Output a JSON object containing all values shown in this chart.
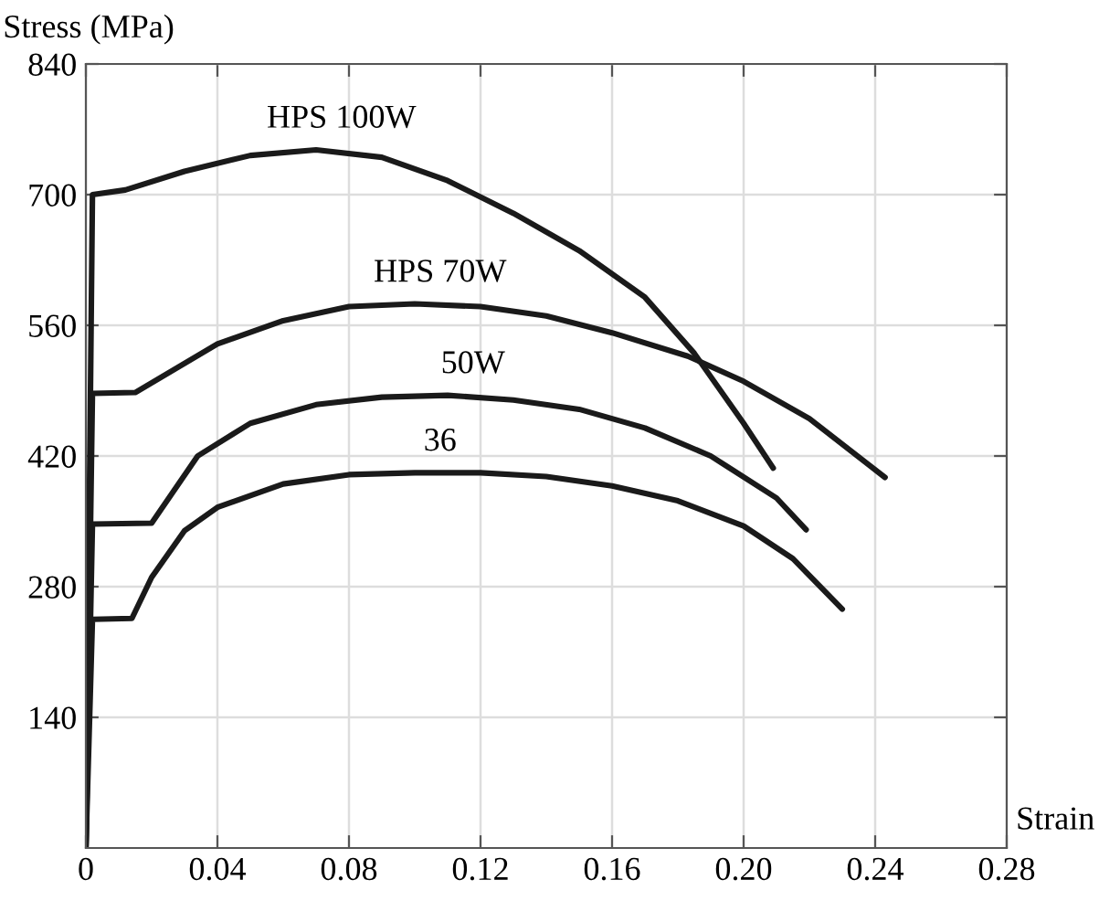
{
  "chart_data": {
    "type": "line",
    "xlabel": "Strain",
    "ylabel": "Stress (MPa)",
    "xlim": [
      0,
      0.28
    ],
    "ylim": [
      0,
      840
    ],
    "xticks": [
      0,
      0.04,
      0.08,
      0.12,
      0.16,
      {
        "value": 0.2,
        "label": "0.20"
      },
      0.24,
      0.28
    ],
    "yticks": [
      140,
      280,
      420,
      560,
      700,
      840
    ],
    "grid": true,
    "marker": "none",
    "line_style": "solid",
    "series": [
      {
        "name": "HPS 100W",
        "color": "#1a1a1a",
        "x": [
          0,
          0.002,
          0.012,
          0.03,
          0.05,
          0.07,
          0.09,
          0.11,
          0.13,
          0.15,
          0.17,
          0.185,
          0.2,
          0.209
        ],
        "values": [
          0,
          700,
          705,
          725,
          742,
          748,
          740,
          715,
          680,
          640,
          590,
          530,
          455,
          407
        ]
      },
      {
        "name": "HPS 70W",
        "color": "#1a1a1a",
        "x": [
          0,
          0.002,
          0.015,
          0.04,
          0.06,
          0.08,
          0.1,
          0.12,
          0.14,
          0.16,
          0.183,
          0.2,
          0.22,
          0.243
        ],
        "values": [
          0,
          487,
          488,
          540,
          565,
          580,
          583,
          580,
          570,
          552,
          527,
          500,
          460,
          397
        ]
      },
      {
        "name": "50W",
        "color": "#1a1a1a",
        "x": [
          0,
          0.002,
          0.02,
          0.034,
          0.05,
          0.07,
          0.09,
          0.11,
          0.13,
          0.15,
          0.17,
          0.19,
          0.21,
          0.219
        ],
        "values": [
          0,
          347,
          348,
          420,
          455,
          475,
          483,
          485,
          480,
          470,
          450,
          420,
          375,
          341
        ]
      },
      {
        "name": "36",
        "color": "#1a1a1a",
        "x": [
          0,
          0.002,
          0.014,
          0.02,
          0.03,
          0.04,
          0.06,
          0.08,
          0.1,
          0.12,
          0.14,
          0.16,
          0.18,
          0.2,
          0.215,
          0.23
        ],
        "values": [
          0,
          245,
          246,
          290,
          340,
          365,
          390,
          400,
          402,
          402,
          398,
          388,
          372,
          345,
          310,
          256
        ]
      }
    ]
  }
}
